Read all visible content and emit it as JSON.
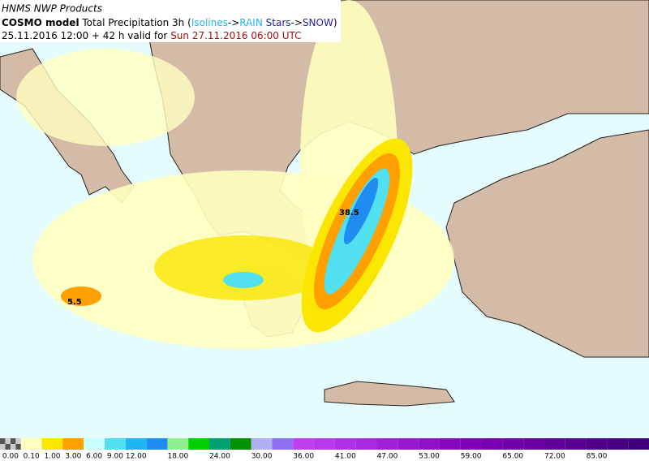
{
  "header": {
    "line1": "HNMS NWP Products",
    "model": "COSMO model",
    "product": "Total Precipitation 3h",
    "paren_open": "(",
    "isolines": "Isolines",
    "arrow1": "->",
    "rain": "RAIN",
    "stars": "Stars",
    "arrow2": "->",
    "snow": "SNOW",
    "paren_close": ")",
    "run": "25.11.2016 12:00 + 42 h valid for",
    "valid": "Sun 27.11.2016 06:00 UTC"
  },
  "map_labels": [
    "5.5",
    "38.5"
  ],
  "colorbar": {
    "labels": [
      "0.00",
      "0.10",
      "1.00",
      "3.00",
      "6.00",
      "9.00",
      "12.00",
      "18.00",
      "24.00",
      "30.00",
      "36.00",
      "41.00",
      "47.00",
      "53.00",
      "59.00",
      "65.00",
      "72.00",
      "85.00"
    ],
    "colors": [
      "#888888",
      "#ffffc0",
      "#fae600",
      "#ffa000",
      "#c8ffff",
      "#50e0f0",
      "#20b4f0",
      "#1e8cf0",
      "#90f090",
      "#00d000",
      "#00a070",
      "#009000",
      "#b0b0f0",
      "#9070f0",
      "#c040f0",
      "#b838ec",
      "#b030e8",
      "#a828e0",
      "#a020d8",
      "#9818d0",
      "#9010c8",
      "#8808c0",
      "#8000b8",
      "#7800b0",
      "#7000a8",
      "#6800a0",
      "#600098",
      "#580090",
      "#500088",
      "#480080",
      "#400078"
    ]
  }
}
